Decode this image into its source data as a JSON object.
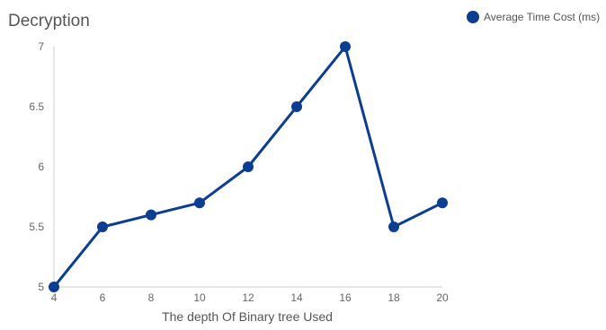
{
  "chart_data": {
    "type": "line",
    "title": "Decryption",
    "xlabel": "The depth Of Binary tree Used",
    "ylabel": "",
    "x": [
      4,
      6,
      8,
      10,
      12,
      14,
      16,
      18,
      20
    ],
    "series": [
      {
        "name": "Average Time Cost (ms)",
        "values": [
          5.0,
          5.5,
          5.6,
          5.7,
          6.0,
          6.5,
          7.0,
          5.5,
          5.7
        ],
        "color": "#0b3d91"
      }
    ],
    "xlim": [
      4,
      20
    ],
    "ylim": [
      5,
      7
    ],
    "x_ticks": [
      "4",
      "6",
      "8",
      "10",
      "12",
      "14",
      "16",
      "18",
      "20"
    ],
    "y_ticks": [
      "5",
      "5.5",
      "6",
      "6.5",
      "7"
    ],
    "grid": false,
    "legend_position": "top-right"
  }
}
